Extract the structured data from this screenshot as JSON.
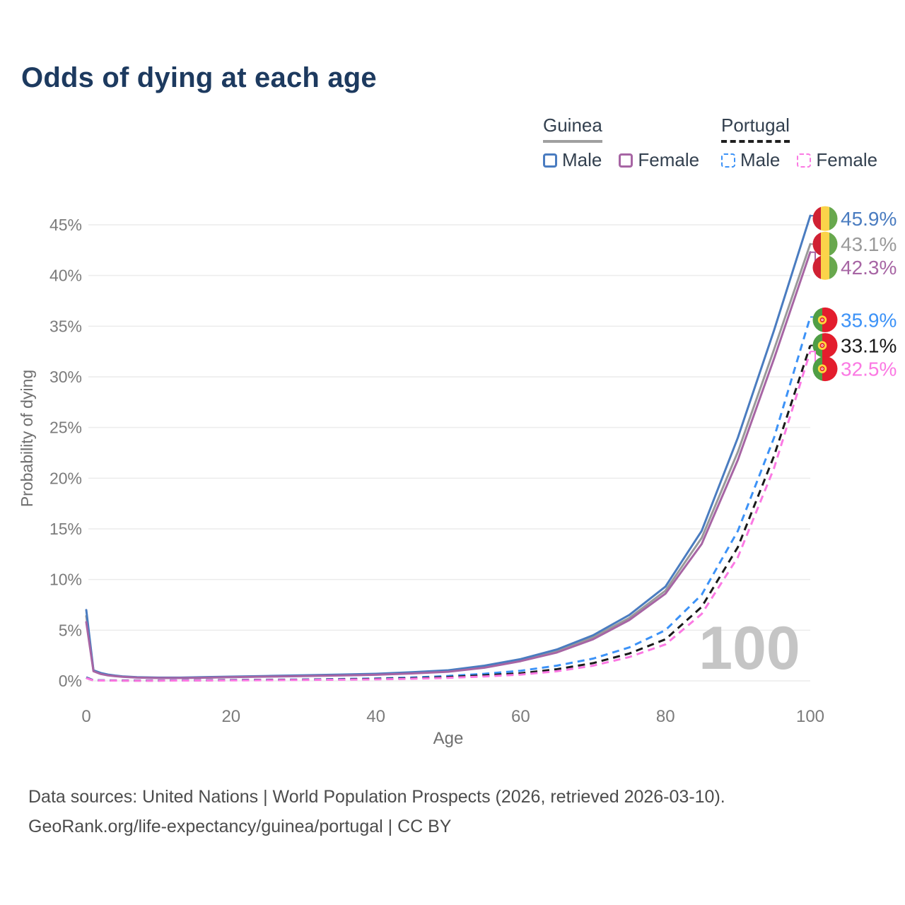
{
  "title": "Odds of dying at each age",
  "legend": {
    "groups": [
      {
        "country": "Guinea",
        "line_style": "solid",
        "underline_color": "#a0a0a0",
        "items": [
          {
            "label": "Male",
            "color": "#4a7cc0"
          },
          {
            "label": "Female",
            "color": "#a765a4"
          }
        ]
      },
      {
        "country": "Portugal",
        "line_style": "dashed",
        "underline_color": "#1f1f1f",
        "items": [
          {
            "label": "Male",
            "color": "#3c92f7"
          },
          {
            "label": "Female",
            "color": "#fb79e3"
          }
        ]
      }
    ]
  },
  "chart_data": {
    "type": "line",
    "title": "Odds of dying at each age",
    "xlabel": "Age",
    "ylabel": "Probability of dying",
    "xlim": [
      0,
      100
    ],
    "ylim": [
      0,
      46
    ],
    "x_ticks": [
      0,
      20,
      40,
      60,
      80,
      100
    ],
    "y_ticks_percent": [
      0,
      5,
      10,
      15,
      20,
      25,
      30,
      35,
      40,
      45
    ],
    "grid": "horizontal",
    "gridline_color": "#ececec",
    "tick_color": "#7b7b7b",
    "watermark": "100",
    "watermark_color": "#c5c5c5",
    "legend_position": "top-right",
    "series": [
      {
        "name": "Guinea Male",
        "country": "Guinea",
        "sex": "Male",
        "style": "solid",
        "color": "#4a7cc0",
        "flag": "guinea",
        "end_label": "45.9%",
        "end_label_color": "#4a7cc0",
        "points": [
          [
            0,
            7.0
          ],
          [
            1,
            1.05
          ],
          [
            2,
            0.78
          ],
          [
            3,
            0.62
          ],
          [
            4,
            0.52
          ],
          [
            5,
            0.45
          ],
          [
            7,
            0.36
          ],
          [
            10,
            0.32
          ],
          [
            13,
            0.32
          ],
          [
            16,
            0.36
          ],
          [
            20,
            0.42
          ],
          [
            25,
            0.48
          ],
          [
            30,
            0.55
          ],
          [
            35,
            0.62
          ],
          [
            40,
            0.7
          ],
          [
            45,
            0.85
          ],
          [
            50,
            1.05
          ],
          [
            55,
            1.5
          ],
          [
            60,
            2.15
          ],
          [
            65,
            3.1
          ],
          [
            70,
            4.5
          ],
          [
            75,
            6.5
          ],
          [
            80,
            9.3
          ],
          [
            85,
            14.8
          ],
          [
            90,
            24.0
          ],
          [
            95,
            34.6
          ],
          [
            100,
            45.9
          ]
        ]
      },
      {
        "name": "Guinea Both sexes",
        "country": "Guinea",
        "sex": "Both",
        "style": "solid",
        "color": "#9a9a9a",
        "flag": "guinea",
        "end_label": "43.1%",
        "end_label_color": "#9a9a9a",
        "points": [
          [
            0,
            6.4
          ],
          [
            1,
            1.0
          ],
          [
            2,
            0.73
          ],
          [
            3,
            0.58
          ],
          [
            4,
            0.49
          ],
          [
            5,
            0.42
          ],
          [
            7,
            0.34
          ],
          [
            10,
            0.3
          ],
          [
            13,
            0.3
          ],
          [
            16,
            0.34
          ],
          [
            20,
            0.39
          ],
          [
            25,
            0.45
          ],
          [
            30,
            0.51
          ],
          [
            35,
            0.58
          ],
          [
            40,
            0.65
          ],
          [
            45,
            0.79
          ],
          [
            50,
            0.98
          ],
          [
            55,
            1.4
          ],
          [
            60,
            2.05
          ],
          [
            65,
            2.95
          ],
          [
            70,
            4.3
          ],
          [
            75,
            6.2
          ],
          [
            80,
            8.9
          ],
          [
            85,
            14.1
          ],
          [
            90,
            22.6
          ],
          [
            95,
            32.7
          ],
          [
            100,
            43.1
          ]
        ]
      },
      {
        "name": "Guinea Female",
        "country": "Guinea",
        "sex": "Female",
        "style": "solid",
        "color": "#a765a4",
        "flag": "guinea",
        "end_label": "42.3%",
        "end_label_color": "#a765a4",
        "points": [
          [
            0,
            5.8
          ],
          [
            1,
            0.95
          ],
          [
            2,
            0.68
          ],
          [
            3,
            0.54
          ],
          [
            4,
            0.46
          ],
          [
            5,
            0.4
          ],
          [
            7,
            0.32
          ],
          [
            10,
            0.28
          ],
          [
            13,
            0.28
          ],
          [
            16,
            0.31
          ],
          [
            20,
            0.36
          ],
          [
            25,
            0.42
          ],
          [
            30,
            0.47
          ],
          [
            35,
            0.53
          ],
          [
            40,
            0.6
          ],
          [
            45,
            0.73
          ],
          [
            50,
            0.9
          ],
          [
            55,
            1.3
          ],
          [
            60,
            1.95
          ],
          [
            65,
            2.8
          ],
          [
            70,
            4.1
          ],
          [
            75,
            6.0
          ],
          [
            80,
            8.6
          ],
          [
            85,
            13.5
          ],
          [
            90,
            21.8
          ],
          [
            95,
            31.8
          ],
          [
            100,
            42.3
          ]
        ]
      },
      {
        "name": "Portugal Male",
        "country": "Portugal",
        "sex": "Male",
        "style": "dashed",
        "color": "#3c92f7",
        "flag": "portugal",
        "end_label": "35.9%",
        "end_label_color": "#3c92f7",
        "points": [
          [
            0,
            0.35
          ],
          [
            1,
            0.06
          ],
          [
            5,
            0.04
          ],
          [
            10,
            0.04
          ],
          [
            15,
            0.06
          ],
          [
            20,
            0.09
          ],
          [
            25,
            0.11
          ],
          [
            30,
            0.14
          ],
          [
            35,
            0.18
          ],
          [
            40,
            0.24
          ],
          [
            45,
            0.33
          ],
          [
            50,
            0.48
          ],
          [
            55,
            0.7
          ],
          [
            60,
            1.0
          ],
          [
            65,
            1.5
          ],
          [
            70,
            2.2
          ],
          [
            75,
            3.3
          ],
          [
            80,
            5.0
          ],
          [
            85,
            8.5
          ],
          [
            90,
            14.8
          ],
          [
            95,
            24.0
          ],
          [
            100,
            35.9
          ]
        ]
      },
      {
        "name": "Portugal Both sexes",
        "country": "Portugal",
        "sex": "Both",
        "style": "dashed",
        "color": "#1a1a1a",
        "flag": "portugal",
        "end_label": "33.1%",
        "end_label_color": "#1a1a1a",
        "points": [
          [
            0,
            0.3
          ],
          [
            1,
            0.05
          ],
          [
            5,
            0.03
          ],
          [
            10,
            0.03
          ],
          [
            15,
            0.05
          ],
          [
            20,
            0.07
          ],
          [
            25,
            0.09
          ],
          [
            30,
            0.11
          ],
          [
            35,
            0.14
          ],
          [
            40,
            0.19
          ],
          [
            45,
            0.26
          ],
          [
            50,
            0.38
          ],
          [
            55,
            0.55
          ],
          [
            60,
            0.75
          ],
          [
            65,
            1.15
          ],
          [
            70,
            1.75
          ],
          [
            75,
            2.7
          ],
          [
            80,
            4.1
          ],
          [
            85,
            7.3
          ],
          [
            90,
            13.2
          ],
          [
            95,
            22.2
          ],
          [
            100,
            33.1
          ]
        ]
      },
      {
        "name": "Portugal Female",
        "country": "Portugal",
        "sex": "Female",
        "style": "dashed",
        "color": "#fb79e3",
        "flag": "portugal",
        "end_label": "32.5%",
        "end_label_color": "#fb79e3",
        "points": [
          [
            0,
            0.27
          ],
          [
            1,
            0.04
          ],
          [
            5,
            0.02
          ],
          [
            10,
            0.02
          ],
          [
            15,
            0.04
          ],
          [
            20,
            0.05
          ],
          [
            25,
            0.07
          ],
          [
            30,
            0.09
          ],
          [
            35,
            0.11
          ],
          [
            40,
            0.15
          ],
          [
            45,
            0.21
          ],
          [
            50,
            0.3
          ],
          [
            55,
            0.44
          ],
          [
            60,
            0.62
          ],
          [
            65,
            0.95
          ],
          [
            70,
            1.5
          ],
          [
            75,
            2.35
          ],
          [
            80,
            3.6
          ],
          [
            85,
            6.6
          ],
          [
            90,
            12.2
          ],
          [
            95,
            21.0
          ],
          [
            100,
            32.5
          ]
        ]
      }
    ],
    "flag_colors": {
      "guinea": {
        "red": "#d02133",
        "yellow": "#fbd34a",
        "green": "#68a84d"
      },
      "portugal": {
        "green": "#4f9e45",
        "red": "#e31d2d",
        "emblem_yellow": "#ffd83d"
      }
    }
  },
  "footer": {
    "line1": "Data sources: United Nations | World Population Prospects (2026, retrieved 2026-03-10).",
    "line2": "GeoRank.org/life-expectancy/guinea/portugal | CC BY"
  }
}
